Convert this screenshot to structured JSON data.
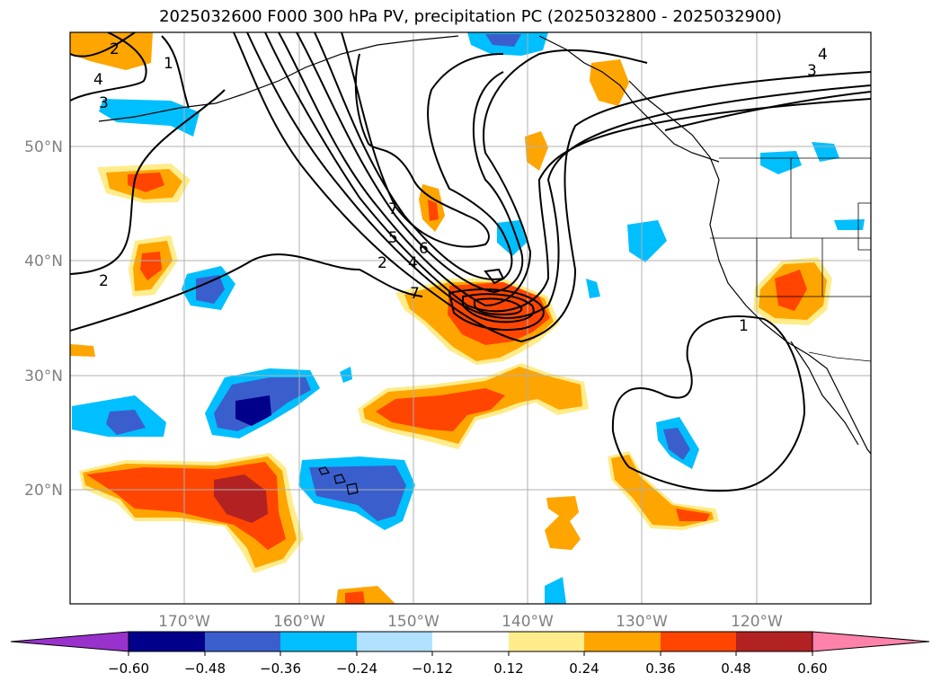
{
  "title": "2025032600 F000 300 hPa PV, precipitation PC (2025032800 - 2025032900)",
  "map": {
    "projection": "plate-carree",
    "lon_range": [
      -180,
      -110
    ],
    "lat_range": [
      10,
      60
    ],
    "grid_lon": [
      -170,
      -160,
      -150,
      -140,
      -130,
      -120
    ],
    "grid_lat": [
      20,
      30,
      40,
      50
    ],
    "lon_labels": [
      "170°W",
      "160°W",
      "150°W",
      "140°W",
      "130°W",
      "120°W"
    ],
    "lat_labels": [
      "20°N",
      "30°N",
      "40°N",
      "50°N"
    ],
    "label_color": "#808080",
    "grid_color": "#b0b0b0"
  },
  "pv_contour_labels": [
    "2",
    "4",
    "3",
    "1",
    "2",
    "7",
    "5",
    "6",
    "2",
    "4",
    "7",
    "4",
    "3",
    "1"
  ],
  "colorbar": {
    "ticks": [
      "−0.60",
      "−0.48",
      "−0.36",
      "−0.24",
      "−0.12",
      "0.12",
      "0.24",
      "0.36",
      "0.48",
      "0.60"
    ],
    "colors": [
      "#9932cc",
      "#00008b",
      "#3a5fcd",
      "#00bfff",
      "#b0e2ff",
      "#ffffff",
      "#ffec8b",
      "#ffa500",
      "#ff4500",
      "#b22222",
      "#ff82ab"
    ]
  }
}
